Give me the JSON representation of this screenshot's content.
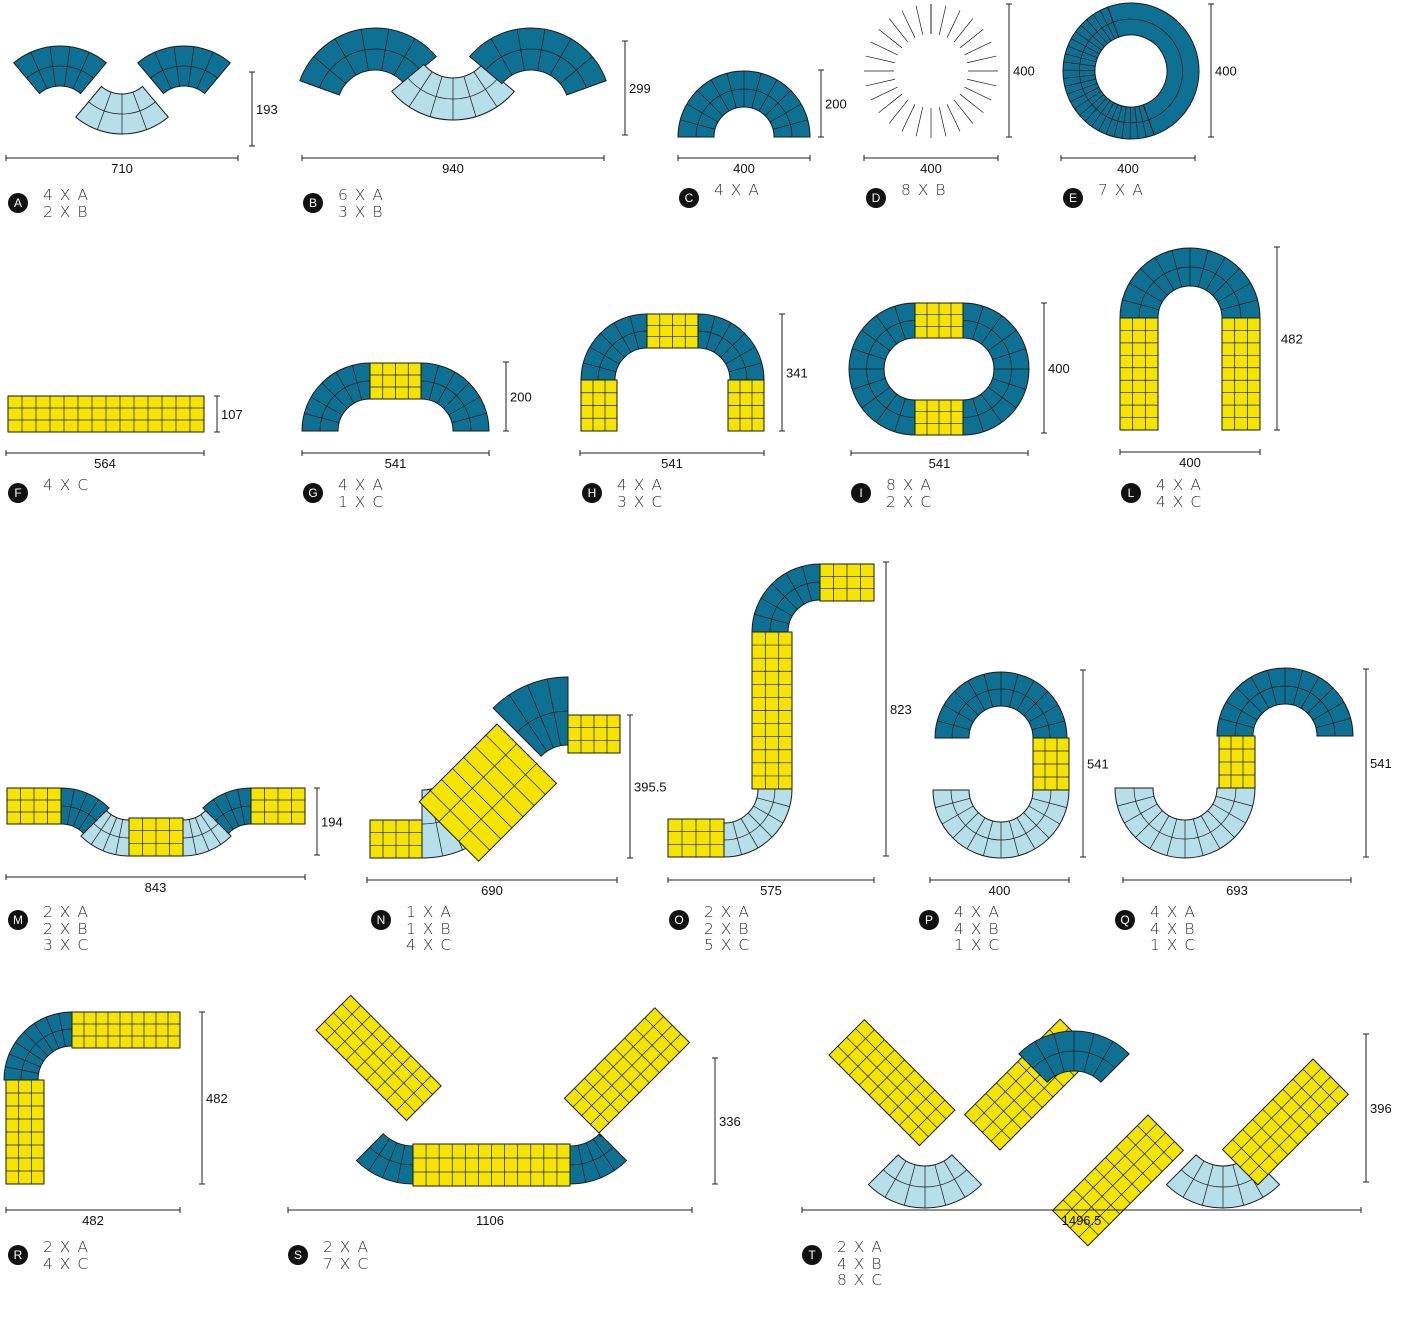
{
  "colors": {
    "A": "#0e7193",
    "B": "#b6dfea",
    "C": "#f4e400",
    "outline": "#1a1a1a",
    "badge": "#111111"
  },
  "configurations": [
    {
      "letter": "A",
      "width": "710",
      "height": "193",
      "pieces": [
        "4 X A",
        "2 X B"
      ]
    },
    {
      "letter": "B",
      "width": "940",
      "height": "299",
      "pieces": [
        "6 X A",
        "3 X B"
      ]
    },
    {
      "letter": "C",
      "width": "400",
      "height": "200",
      "pieces": [
        "4 X A"
      ]
    },
    {
      "letter": "D",
      "width": "400",
      "height": "400",
      "pieces": [
        "8 X B"
      ]
    },
    {
      "letter": "E",
      "width": "400",
      "height": "400",
      "pieces": [
        "7 X A"
      ]
    },
    {
      "letter": "F",
      "width": "564",
      "height": "107",
      "pieces": [
        "4 X C"
      ]
    },
    {
      "letter": "G",
      "width": "541",
      "height": "200",
      "pieces": [
        "4 X A",
        "1 X C"
      ]
    },
    {
      "letter": "H",
      "width": "541",
      "height": "341",
      "pieces": [
        "4 X A",
        "3 X C"
      ]
    },
    {
      "letter": "I",
      "width": "541",
      "height": "400",
      "pieces": [
        "8 X A",
        "2 X C"
      ]
    },
    {
      "letter": "L",
      "width": "400",
      "height": "482",
      "pieces": [
        "4 X A",
        "4 X C"
      ]
    },
    {
      "letter": "M",
      "width": "843",
      "height": "194",
      "pieces": [
        "2 X A",
        "2 X B",
        "3 X C"
      ]
    },
    {
      "letter": "N",
      "width": "690",
      "height": "395.5",
      "pieces": [
        "1 X A",
        "1 X B",
        "4 X C"
      ]
    },
    {
      "letter": "O",
      "width": "575",
      "height": "823",
      "pieces": [
        "2 X A",
        "2 X B",
        "5 X C"
      ]
    },
    {
      "letter": "P",
      "width": "400",
      "height": "541",
      "pieces": [
        "4 X A",
        "4 X B",
        "1 X C"
      ]
    },
    {
      "letter": "Q",
      "width": "693",
      "height": "541",
      "pieces": [
        "4 X A",
        "4 X B",
        "1 X C"
      ]
    },
    {
      "letter": "R",
      "width": "482",
      "height": "482",
      "pieces": [
        "2 X A",
        "4 X C"
      ]
    },
    {
      "letter": "S",
      "width": "1106",
      "height": "336",
      "pieces": [
        "2 X A",
        "7 X C"
      ]
    },
    {
      "letter": "T",
      "width": "1496.5",
      "height": "396",
      "pieces": [
        "2 X A",
        "4 X B",
        "8 X C"
      ]
    }
  ]
}
